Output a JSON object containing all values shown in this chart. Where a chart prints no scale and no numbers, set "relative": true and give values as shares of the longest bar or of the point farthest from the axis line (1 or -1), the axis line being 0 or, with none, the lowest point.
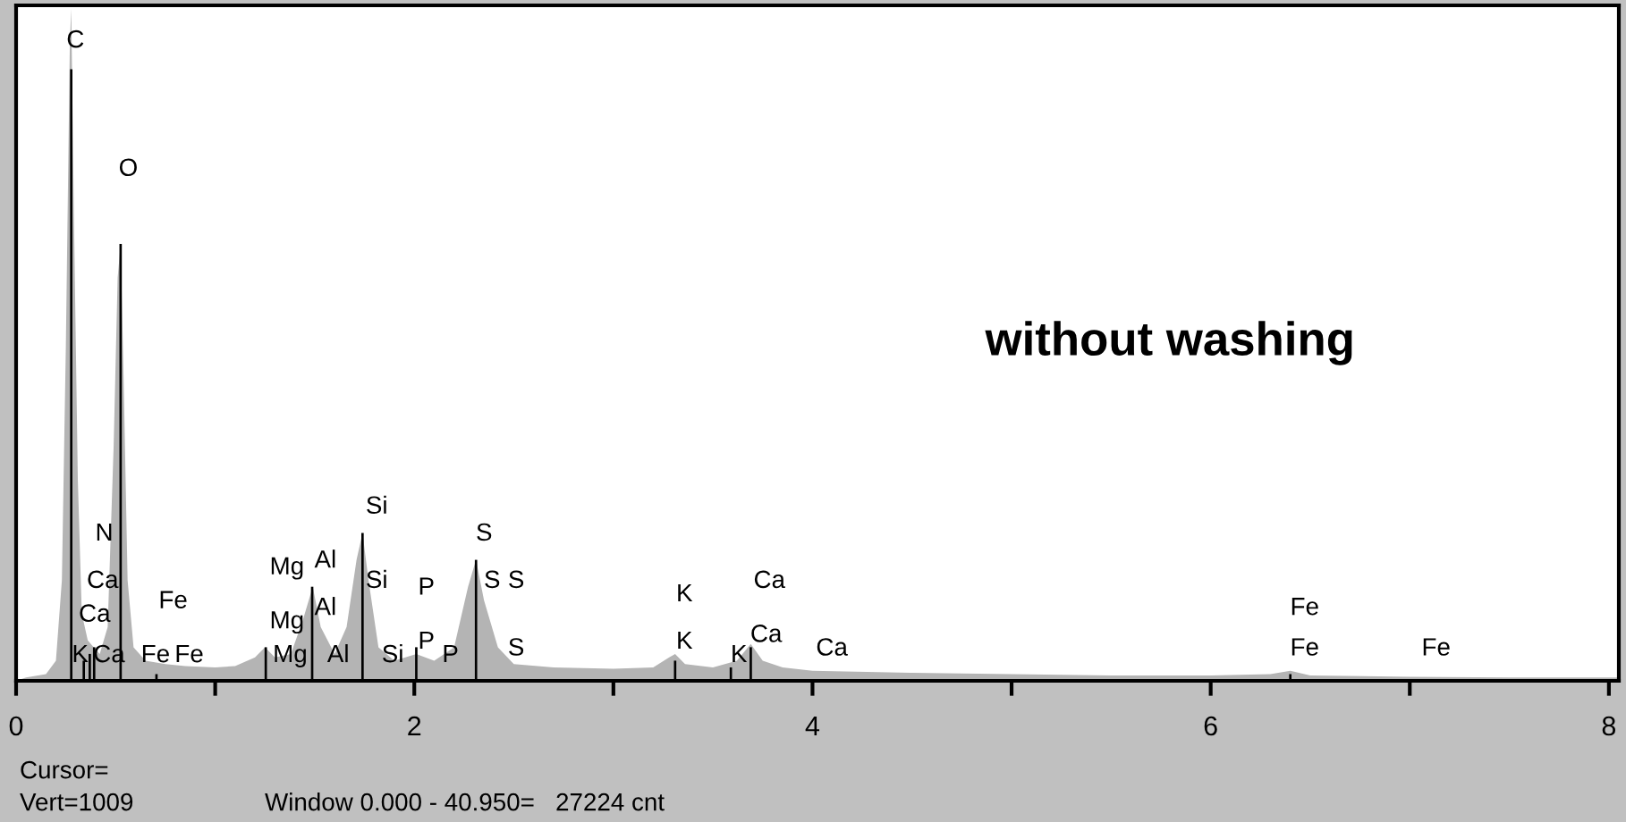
{
  "chart_data": {
    "type": "area",
    "relative": true,
    "xlim": [
      0,
      8.05
    ],
    "xticks": [
      0,
      {
        "value": 1,
        "label": null
      },
      2,
      {
        "value": 3,
        "label": null
      },
      4,
      {
        "value": 5,
        "label": null
      },
      6,
      {
        "value": 7,
        "label": null
      },
      8
    ],
    "grid": false,
    "legend": false,
    "series": [
      {
        "color": "#b4b4b4",
        "x": [
          0.0,
          0.05,
          0.15,
          0.2,
          0.23,
          0.25,
          0.27,
          0.277,
          0.29,
          0.31,
          0.33,
          0.36,
          0.39,
          0.42,
          0.46,
          0.49,
          0.51,
          0.525,
          0.54,
          0.56,
          0.59,
          0.65,
          0.75,
          0.85,
          1.0,
          1.1,
          1.2,
          1.25,
          1.3,
          1.38,
          1.44,
          1.49,
          1.53,
          1.6,
          1.66,
          1.71,
          1.74,
          1.77,
          1.82,
          1.9,
          2.01,
          2.1,
          2.2,
          2.27,
          2.31,
          2.35,
          2.42,
          2.5,
          2.7,
          3.0,
          3.2,
          3.28,
          3.31,
          3.36,
          3.5,
          3.62,
          3.69,
          3.75,
          3.85,
          4.0,
          4.5,
          5.0,
          5.5,
          6.0,
          6.3,
          6.4,
          6.5,
          7.0,
          7.5,
          8.0,
          8.05
        ],
        "values": [
          0.0,
          0.005,
          0.01,
          0.03,
          0.15,
          0.5,
          0.95,
          1.0,
          0.7,
          0.3,
          0.1,
          0.06,
          0.05,
          0.04,
          0.08,
          0.35,
          0.6,
          0.65,
          0.45,
          0.15,
          0.05,
          0.03,
          0.025,
          0.022,
          0.02,
          0.022,
          0.035,
          0.05,
          0.035,
          0.04,
          0.09,
          0.14,
          0.08,
          0.04,
          0.08,
          0.18,
          0.22,
          0.15,
          0.05,
          0.03,
          0.04,
          0.03,
          0.05,
          0.14,
          0.18,
          0.12,
          0.05,
          0.025,
          0.02,
          0.018,
          0.02,
          0.035,
          0.04,
          0.025,
          0.02,
          0.03,
          0.055,
          0.03,
          0.02,
          0.015,
          0.012,
          0.01,
          0.008,
          0.008,
          0.01,
          0.015,
          0.008,
          0.006,
          0.005,
          0.005,
          0.005
        ]
      },
      {
        "type": "bar",
        "color": "#000000",
        "x": [
          0.277,
          0.34,
          0.37,
          0.392,
          0.525,
          0.705,
          1.254,
          1.487,
          1.74,
          2.01,
          2.31,
          3.31,
          3.59,
          3.69,
          6.4
        ],
        "values": [
          0.91,
          0.03,
          0.04,
          0.05,
          0.65,
          0.01,
          0.05,
          0.14,
          0.22,
          0.05,
          0.18,
          0.03,
          0.02,
          0.05,
          0.01
        ]
      }
    ],
    "annotations": [
      "without washing",
      "Cursor=",
      "Vert=1009",
      "Window 0.000 - 40.950=   27224 cnt",
      "C",
      "O",
      "N",
      "Ca",
      "Ca",
      "K",
      "Ca",
      "Fe",
      "Fe",
      "Fe",
      "Mg",
      "Al",
      "Mg",
      "Al",
      "Mg",
      "Al",
      "Si",
      "Si",
      "Si",
      "P",
      "P",
      "P",
      "S",
      "S",
      "S",
      "S",
      "K",
      "K",
      "K",
      "Ca",
      "Ca",
      "Ca",
      "Fe",
      "Fe",
      "Fe"
    ]
  }
}
